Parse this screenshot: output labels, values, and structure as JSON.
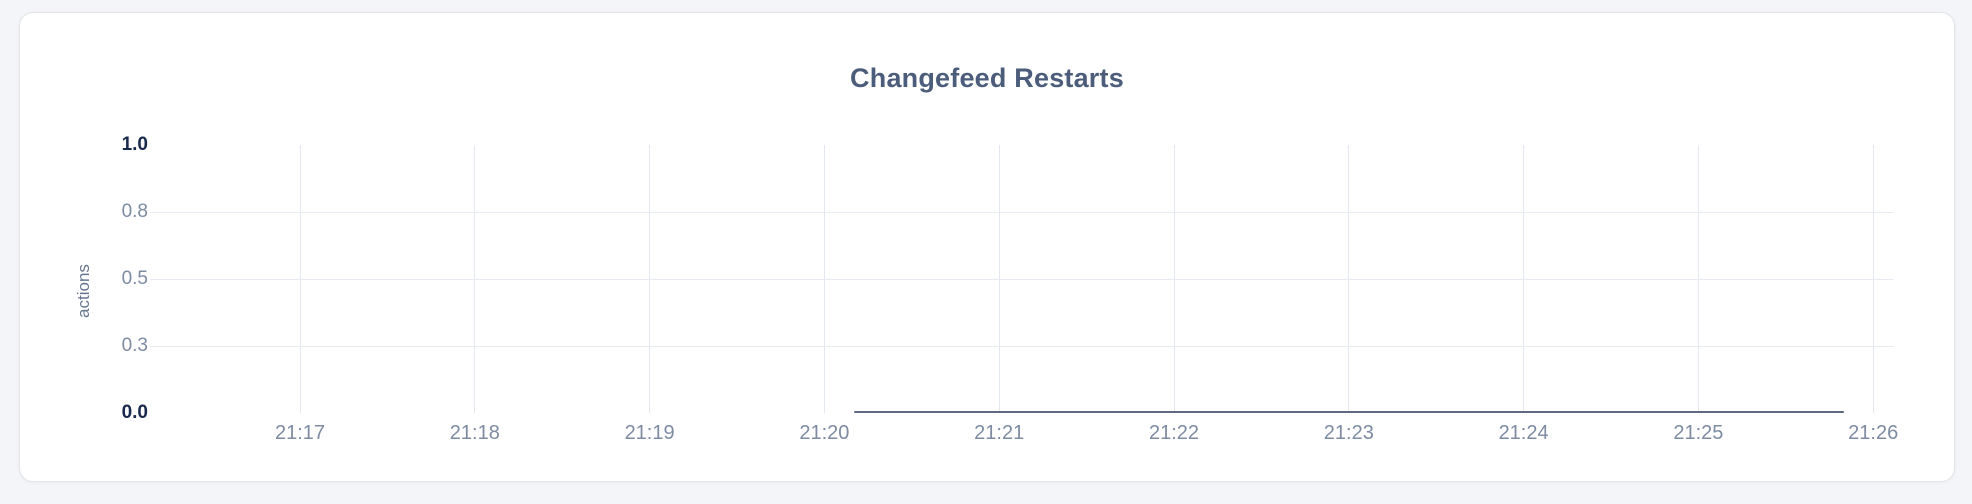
{
  "page": {
    "background": "#f4f5f8"
  },
  "card": {
    "background": "#ffffff",
    "border_color": "#e3e4e9"
  },
  "chart_data": {
    "type": "line",
    "title": "Changefeed Restarts",
    "xlabel": "",
    "ylabel": "actions",
    "ylim": [
      0,
      1.0
    ],
    "y_ticks": [
      {
        "value": 0.0,
        "label": "0.0",
        "emphasis": true
      },
      {
        "value": 0.25,
        "label": "0.3",
        "emphasis": false
      },
      {
        "value": 0.5,
        "label": "0.5",
        "emphasis": false
      },
      {
        "value": 0.75,
        "label": "0.8",
        "emphasis": false
      },
      {
        "value": 1.0,
        "label": "1.0",
        "emphasis": true
      }
    ],
    "x_ticks": [
      "21:17",
      "21:18",
      "21:19",
      "21:20",
      "21:21",
      "21:22",
      "21:23",
      "21:24",
      "21:25",
      "21:26"
    ],
    "grid": {
      "horizontal_at": [
        0.25,
        0.5,
        0.75
      ],
      "vertical_at_every_x_tick": true,
      "horizontal_color": "#e9ebf2",
      "vertical_color": "#e3e7f0"
    },
    "legend": "none",
    "series": [
      {
        "color": "#5f6b80",
        "points": [
          {
            "x": "21:20:10",
            "y": 0
          },
          {
            "x": "21:25:50",
            "y": 0
          }
        ]
      }
    ],
    "colors": {
      "title": "#4b5d7b",
      "tick_emphasis": "#182a4c",
      "tick_muted": "#7d8ba3",
      "axis_label": "#67768f"
    }
  }
}
